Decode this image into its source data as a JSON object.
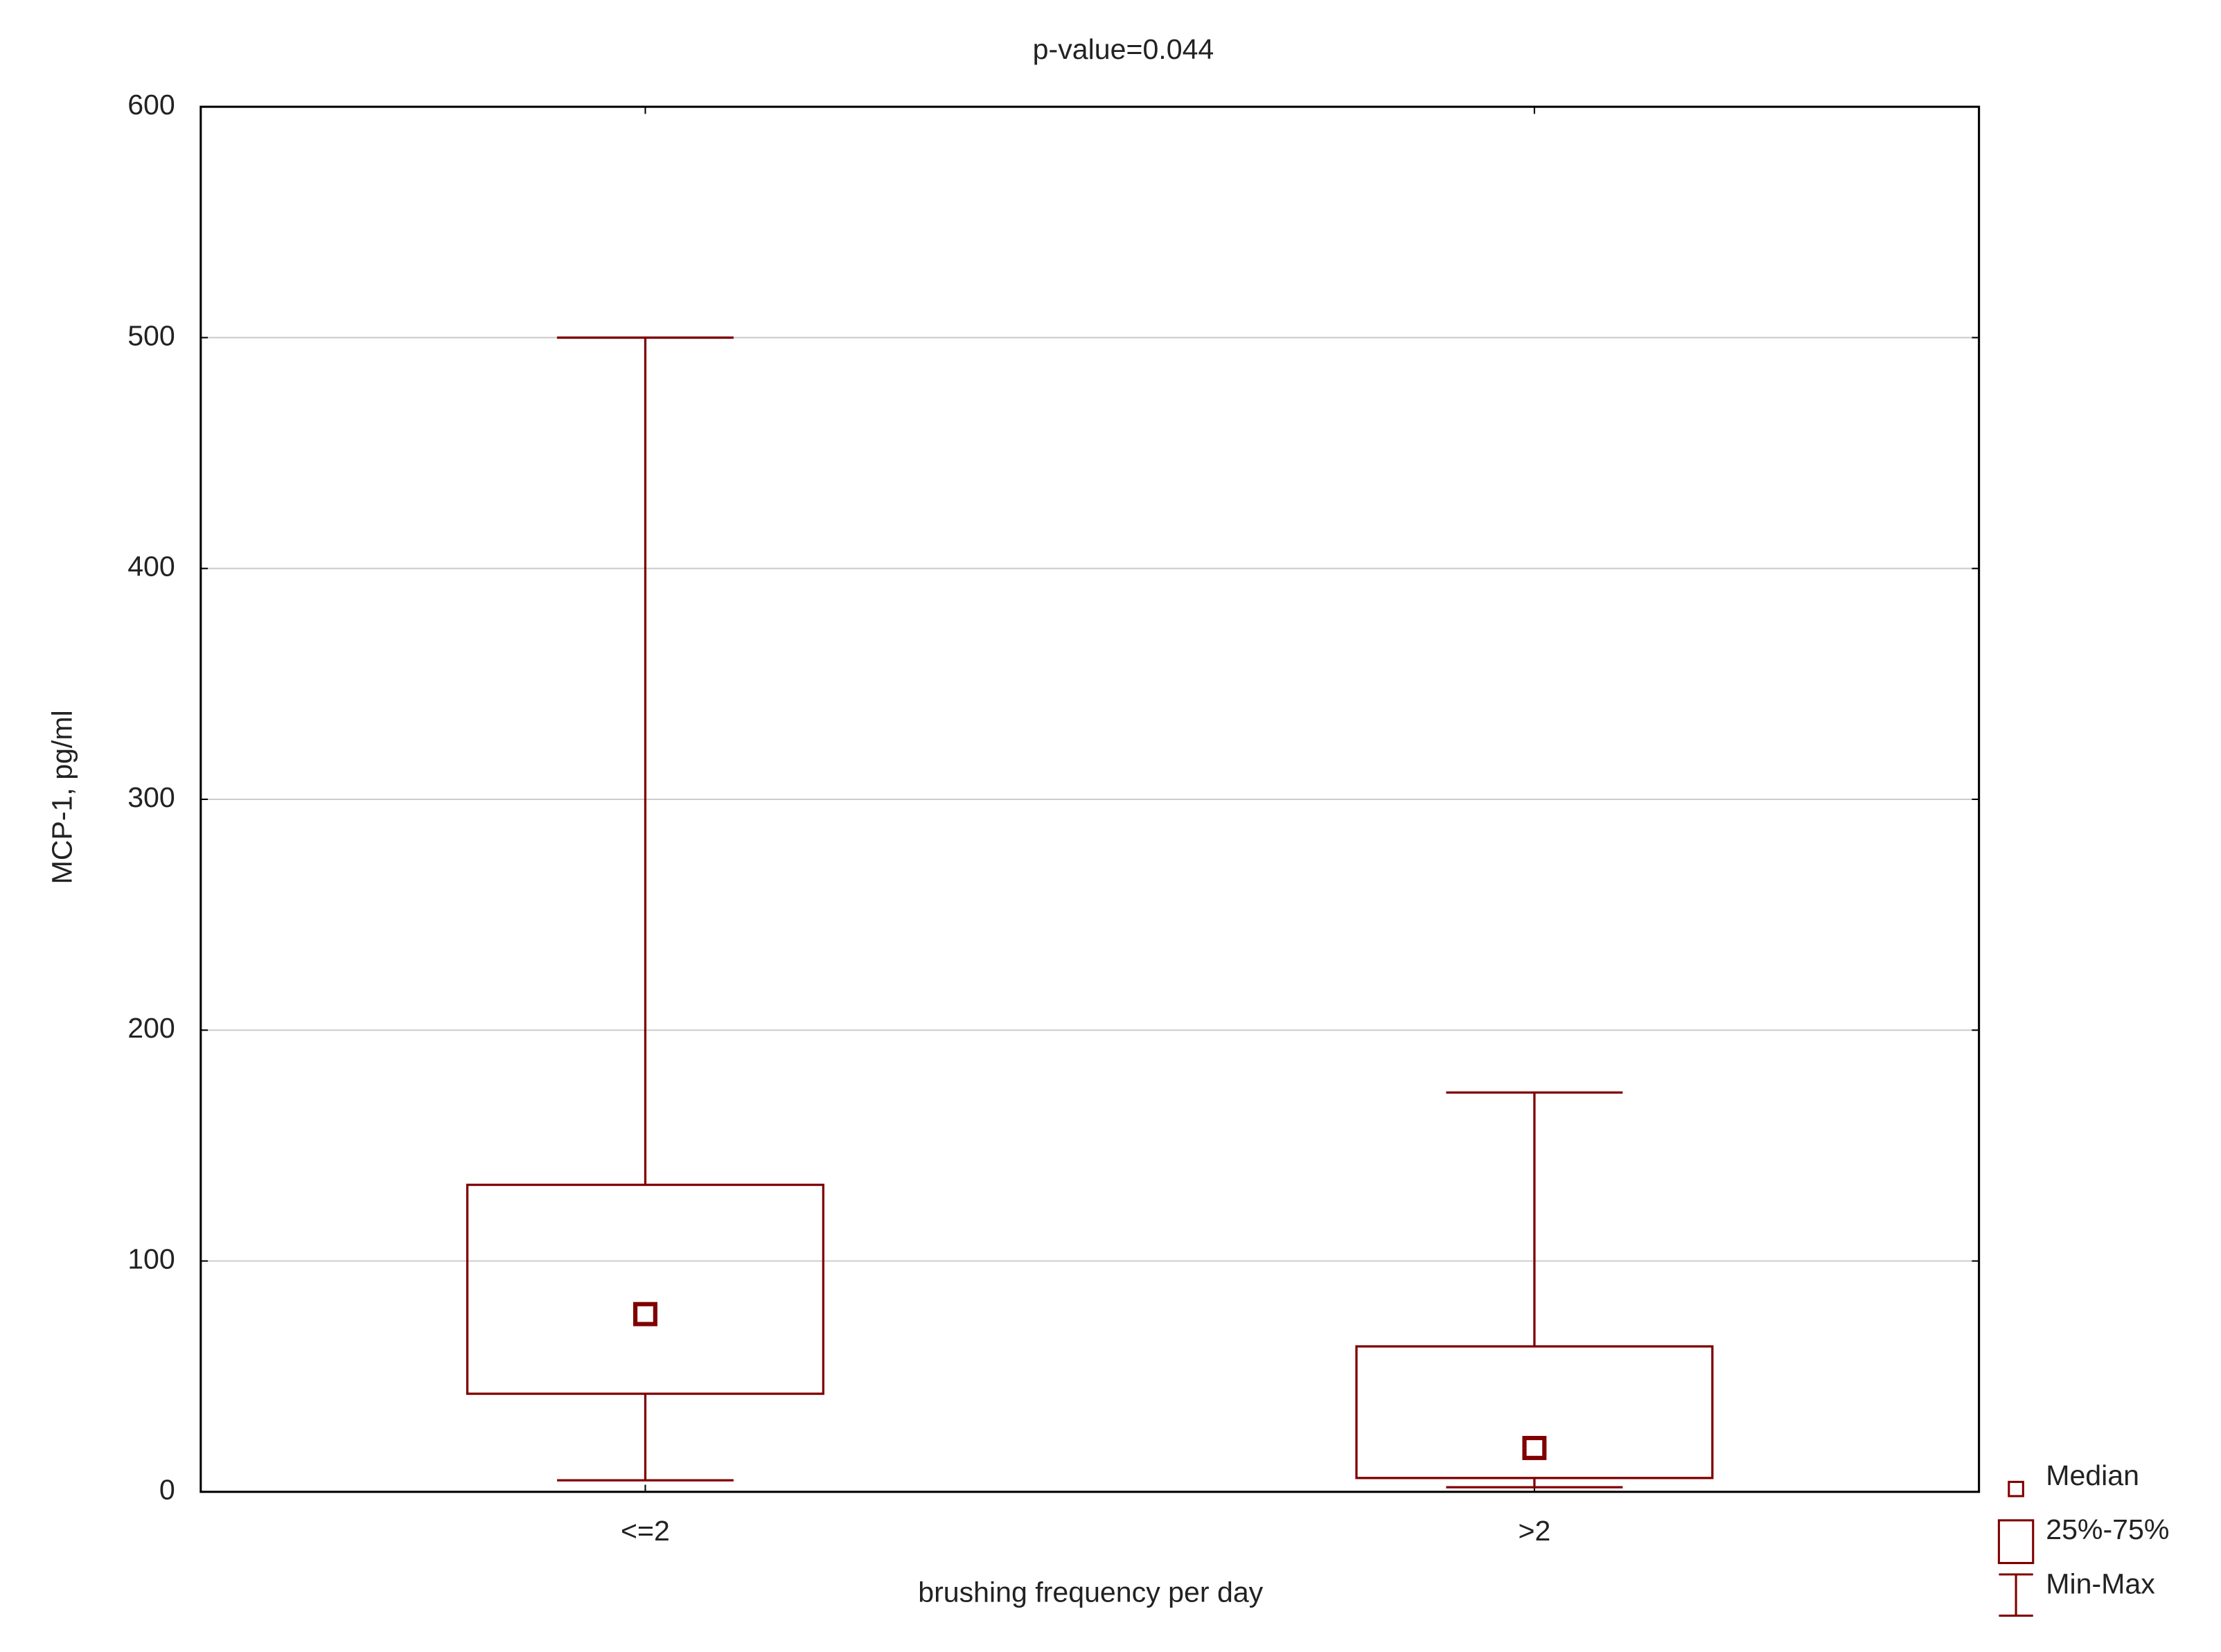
{
  "chart_data": {
    "type": "box",
    "title": "p-value=0.044",
    "xlabel": "brushing frequency per day",
    "ylabel": "MCP-1, pg/ml",
    "categories": [
      "<=2",
      ">2"
    ],
    "boxes": [
      {
        "min": 5,
        "q1": 42.5,
        "median": 77,
        "q3": 133,
        "max": 500
      },
      {
        "min": 2,
        "q1": 6,
        "median": 19,
        "q3": 63,
        "max": 173
      }
    ],
    "color": "#800000",
    "ylim": [
      0,
      600
    ],
    "yticks": [
      0,
      100,
      200,
      300,
      400,
      500,
      600
    ],
    "grid": true,
    "legend": [
      "Median",
      "25%-75%",
      "Min-Max"
    ]
  }
}
